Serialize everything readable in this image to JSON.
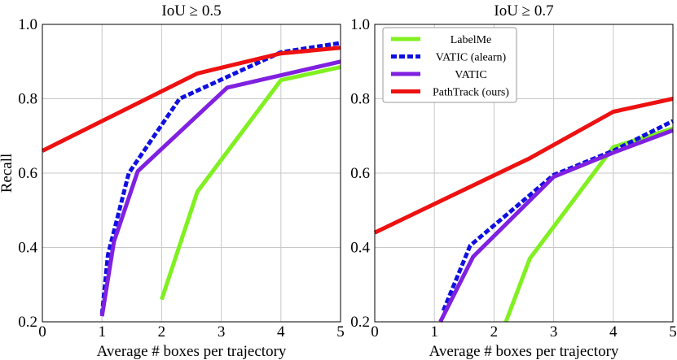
{
  "chart_data": [
    {
      "type": "line",
      "title": "IoU  ≥  0.5",
      "xlabel": "Average # boxes per trajectory",
      "ylabel": "Recall",
      "xlim": [
        0,
        5
      ],
      "ylim": [
        0.2,
        1.0
      ],
      "xticks": [
        "0",
        "1",
        "2",
        "3",
        "4",
        "5"
      ],
      "yticks": [
        "0.2",
        "0.4",
        "0.6",
        "0.8",
        "1.0"
      ],
      "grid": true,
      "series": [
        {
          "key": "labelme",
          "color": "#80f020",
          "dash": "solid",
          "x": [
            2.0,
            2.6,
            4.0,
            5.0
          ],
          "y": [
            0.26,
            0.55,
            0.85,
            0.885
          ]
        },
        {
          "key": "vatic_alearn",
          "color": "#1010e0",
          "dash": "dashed",
          "x": [
            1.0,
            1.1,
            1.45,
            2.3,
            4.0,
            5.0
          ],
          "y": [
            0.22,
            0.38,
            0.6,
            0.8,
            0.925,
            0.95
          ]
        },
        {
          "key": "vatic",
          "color": "#8020e0",
          "dash": "solid",
          "x": [
            1.0,
            1.2,
            1.6,
            3.1,
            5.0
          ],
          "y": [
            0.215,
            0.415,
            0.605,
            0.83,
            0.9
          ]
        },
        {
          "key": "pathtrack",
          "color": "#ee1111",
          "dash": "solid",
          "x": [
            0.0,
            2.6,
            4.0,
            5.0
          ],
          "y": [
            0.66,
            0.868,
            0.922,
            0.937
          ]
        }
      ]
    },
    {
      "type": "line",
      "title": "IoU  ≥  0.7",
      "xlabel": "Average # boxes per trajectory",
      "ylabel": "",
      "xlim": [
        0,
        5
      ],
      "ylim": [
        0.2,
        1.0
      ],
      "xticks": [
        "0",
        "1",
        "2",
        "3",
        "4",
        "5"
      ],
      "yticks": [
        "0.2",
        "0.4",
        "0.6",
        "0.8",
        "1.0"
      ],
      "grid": true,
      "legend": {
        "position": "top-left",
        "entries": [
          {
            "key": "labelme",
            "label": "LabelMe"
          },
          {
            "key": "vatic_alearn",
            "label": "VATIC (alearn)"
          },
          {
            "key": "vatic",
            "label": "VATIC"
          },
          {
            "key": "pathtrack",
            "label": "PathTrack (ours)"
          }
        ]
      },
      "series": [
        {
          "key": "labelme",
          "color": "#80f020",
          "dash": "solid",
          "x": [
            2.2,
            2.6,
            4.0,
            5.0
          ],
          "y": [
            0.2,
            0.37,
            0.67,
            0.72
          ]
        },
        {
          "key": "vatic_alearn",
          "color": "#1010e0",
          "dash": "dashed",
          "x": [
            1.15,
            1.6,
            3.0,
            4.0,
            5.0
          ],
          "y": [
            0.23,
            0.405,
            0.595,
            0.66,
            0.74
          ]
        },
        {
          "key": "vatic",
          "color": "#8020e0",
          "dash": "solid",
          "x": [
            1.1,
            1.65,
            3.0,
            4.0,
            5.0
          ],
          "y": [
            0.2,
            0.375,
            0.59,
            0.655,
            0.715
          ]
        },
        {
          "key": "pathtrack",
          "color": "#ee1111",
          "dash": "solid",
          "x": [
            0.0,
            2.6,
            4.0,
            5.0
          ],
          "y": [
            0.44,
            0.64,
            0.765,
            0.8
          ]
        }
      ]
    }
  ]
}
